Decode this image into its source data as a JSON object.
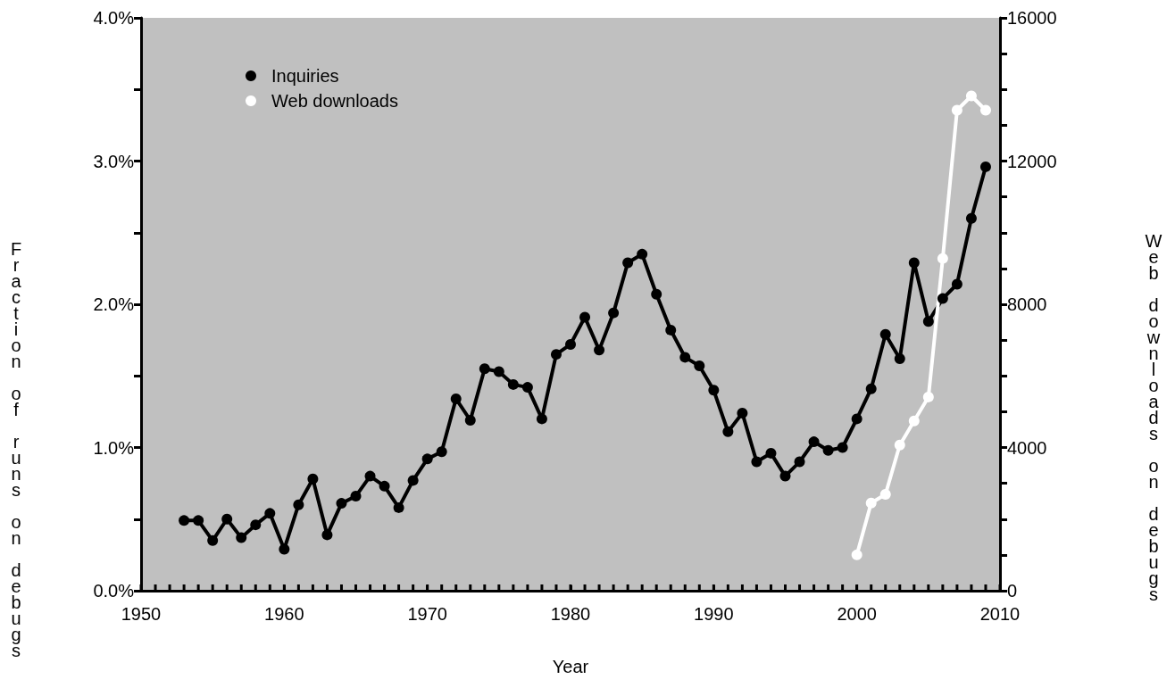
{
  "chart_data": {
    "type": "line",
    "xlabel": "Year",
    "ylabel": "Fraction of runs on debugs",
    "y2label": "Web downloads on debugs",
    "xlim": [
      1950,
      2010
    ],
    "xticks": [
      1950,
      1960,
      1970,
      1980,
      1990,
      2000,
      2010
    ],
    "ylim": [
      0,
      4
    ],
    "yticks": [
      {
        "value": 0,
        "label": "0.0%"
      },
      {
        "value": 1,
        "label": "1.0%"
      },
      {
        "value": 2,
        "label": "2.0%"
      },
      {
        "value": 3,
        "label": "3.0%"
      },
      {
        "value": 4,
        "label": "4.0%"
      }
    ],
    "y2lim": [
      0,
      16000
    ],
    "y2ticks": [
      0,
      4000,
      8000,
      12000,
      16000
    ],
    "grid": false,
    "legend": "top left",
    "marker": "circle",
    "line_style": "solid",
    "series": [
      {
        "name": "Inquiries",
        "color": "#000000",
        "x": [
          1953,
          1954,
          1955,
          1956,
          1957,
          1958,
          1959,
          1960,
          1961,
          1962,
          1963,
          1964,
          1965,
          1966,
          1967,
          1968,
          1969,
          1970,
          1971,
          1972,
          1973,
          1974,
          1975,
          1976,
          1977,
          1978,
          1979,
          1980,
          1981,
          1982,
          1983,
          1984,
          1985,
          1986,
          1987,
          1988,
          1989,
          1990,
          1991,
          1992,
          1993,
          1994,
          1995,
          1996,
          1997,
          1998,
          1999,
          2000,
          2001,
          2002,
          2003,
          2004,
          2005,
          2006,
          2007,
          2008,
          2009
        ],
        "values": [
          0.49,
          0.49,
          0.35,
          0.5,
          0.37,
          0.46,
          0.54,
          0.29,
          0.6,
          0.78,
          0.39,
          0.61,
          0.66,
          0.8,
          0.73,
          0.58,
          0.77,
          0.92,
          0.97,
          1.34,
          1.19,
          1.55,
          1.53,
          1.44,
          1.42,
          1.2,
          1.65,
          1.72,
          1.91,
          1.68,
          1.94,
          2.29,
          2.35,
          2.07,
          1.82,
          1.63,
          1.57,
          1.4,
          1.11,
          1.24,
          0.9,
          0.96,
          0.8,
          0.9,
          1.04,
          0.98,
          1.0,
          1.2,
          1.41,
          1.79,
          1.62,
          2.29,
          1.88,
          2.04,
          2.14,
          2.6,
          2.96
        ]
      },
      {
        "name": "Web downloads",
        "color": "#ffffff",
        "axis": "y2",
        "x": [
          2000,
          2001,
          2002,
          2003,
          2004,
          2005,
          2006,
          2007,
          2008,
          2009
        ],
        "values": [
          1000,
          2450,
          2690,
          4070,
          4740,
          5410,
          9280,
          13420,
          13820,
          13420
        ]
      }
    ]
  }
}
